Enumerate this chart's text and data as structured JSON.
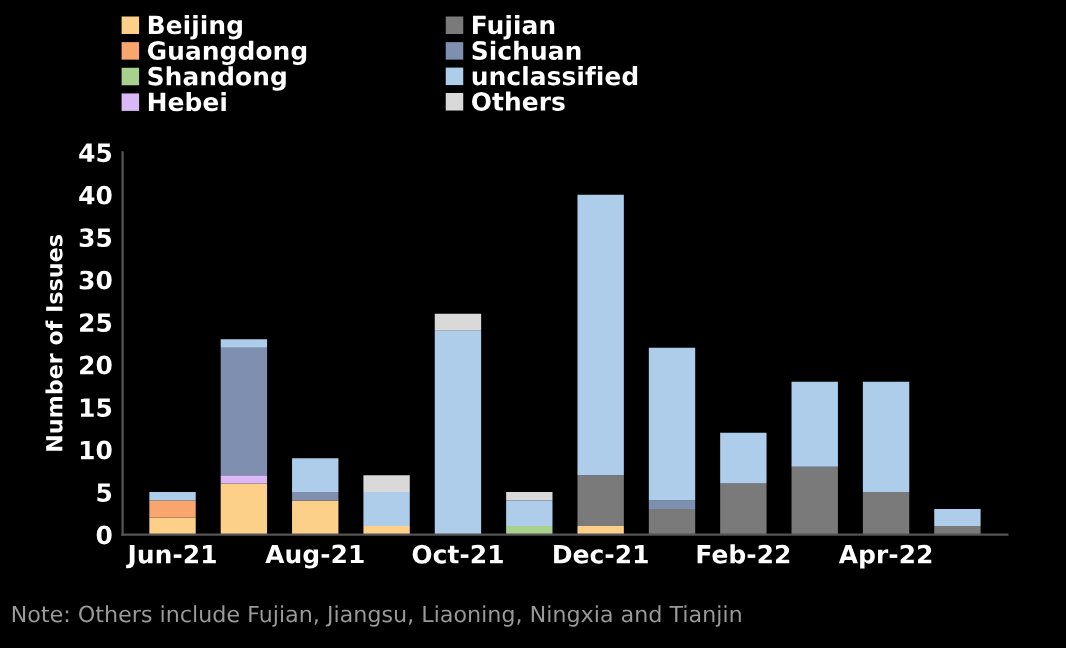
{
  "chart_data": {
    "type": "bar",
    "stacked": true,
    "ylabel": "Number of Issues",
    "categories": [
      "Jun-21",
      null,
      "Aug-21",
      null,
      "Oct-21",
      null,
      "Dec-21",
      null,
      "Feb-22",
      null,
      "Apr-22",
      null
    ],
    "series": [
      {
        "name": "Beijing",
        "color": "#fdd08a",
        "values": [
          2,
          6,
          4,
          1,
          0,
          0,
          1,
          0,
          0,
          0,
          0,
          0
        ]
      },
      {
        "name": "Guangdong",
        "color": "#f9a66e",
        "values": [
          2,
          0,
          0,
          0,
          0,
          0,
          0,
          0,
          0,
          0,
          0,
          0
        ]
      },
      {
        "name": "Shandong",
        "color": "#a9d18e",
        "values": [
          0,
          0,
          0,
          0,
          0,
          1,
          0,
          0,
          0,
          0,
          0,
          0
        ]
      },
      {
        "name": "Hebei",
        "color": "#d9b8f5",
        "values": [
          0,
          1,
          0,
          0,
          0,
          0,
          0,
          0,
          0,
          0,
          0,
          0
        ]
      },
      {
        "name": "Fujian",
        "color": "#7a7a7a",
        "values": [
          0,
          0,
          0,
          0,
          0,
          0,
          6,
          3,
          6,
          8,
          5,
          1
        ]
      },
      {
        "name": "Sichuan",
        "color": "#7f8fb0",
        "values": [
          0,
          15,
          1,
          0,
          0,
          0,
          0,
          1,
          0,
          0,
          0,
          0
        ]
      },
      {
        "name": "unclassified",
        "color": "#aecdea",
        "values": [
          1,
          1,
          4,
          4,
          24,
          3,
          33,
          18,
          6,
          10,
          13,
          2
        ]
      },
      {
        "name": "Others",
        "color": "#d9d9d9",
        "values": [
          0,
          0,
          0,
          2,
          2,
          1,
          0,
          0,
          0,
          0,
          0,
          0
        ]
      }
    ],
    "ylim": [
      0,
      45
    ],
    "yticks": [
      0,
      5,
      10,
      15,
      20,
      25,
      30,
      35,
      40,
      45
    ],
    "grid": false,
    "legend": "top left",
    "annotations": [
      "Note: Others include Fujian, Jiangsu, Liaoning, Ningxia and Tianjin"
    ]
  }
}
